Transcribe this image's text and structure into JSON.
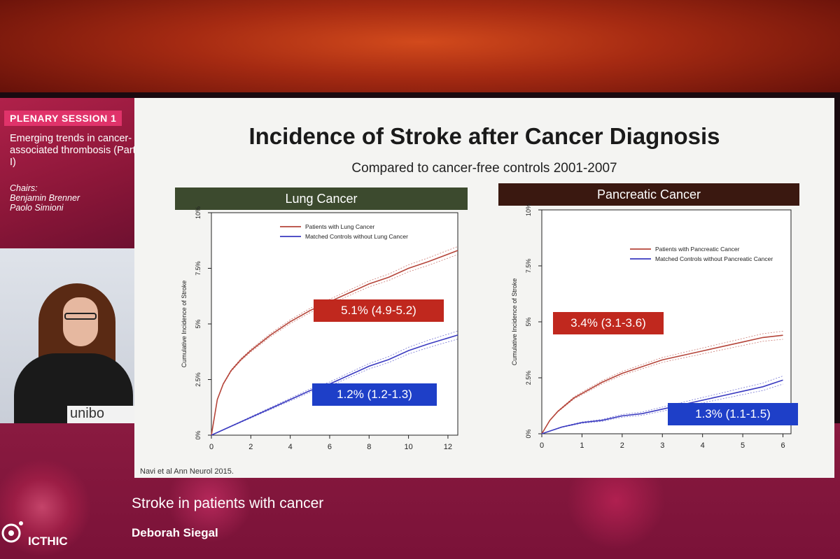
{
  "sidebar": {
    "session_tag": "PLENARY SESSION 1",
    "session_title": "Emerging trends in cancer-associated thrombosis (Part I)",
    "chairs_label": "Chairs:",
    "chair_1": "Benjamin Brenner",
    "chair_2": "Paolo Simioni",
    "podium_text": "unibo"
  },
  "footer": {
    "talk_title": "Stroke in patients with cancer",
    "speaker": "Deborah Siegal",
    "logo_text": "ICTHIC"
  },
  "slide": {
    "title": "Incidence of Stroke after Cancer Diagnosis",
    "subtitle": "Compared to cancer-free controls 2001-2007",
    "citation": "Navi et al Ann Neurol 2015."
  },
  "colors": {
    "cancer_line": "#b5453a",
    "control_line": "#3a3ac0",
    "lung_header": "#3c4a2e",
    "pancreatic_header": "#3a1810",
    "label_red": "#c0281e",
    "label_blue": "#1e3fc8"
  },
  "chart_data": [
    {
      "type": "line",
      "title": "Lung Cancer",
      "ylabel": "Cumulative Incidence of Stroke",
      "xlabel": "",
      "xlim": [
        0,
        12.5
      ],
      "ylim": [
        0,
        10
      ],
      "x_ticks": [
        "0",
        "2",
        "4",
        "6",
        "8",
        "10",
        "12"
      ],
      "x_tick_values": [
        0,
        2,
        4,
        6,
        8,
        10,
        12
      ],
      "y_ticks": [
        "0%",
        "2.5%",
        "5%",
        "7.5%",
        "10%"
      ],
      "y_tick_values": [
        0,
        2.5,
        5,
        7.5,
        10
      ],
      "legend_position": "top-center",
      "series": [
        {
          "name": "Patients with Lung Cancer",
          "x": [
            0,
            0.3,
            0.6,
            1,
            1.5,
            2,
            3,
            4,
            5,
            6,
            7,
            8,
            9,
            10,
            11,
            12.5
          ],
          "values": [
            0,
            1.6,
            2.3,
            2.9,
            3.4,
            3.8,
            4.5,
            5.1,
            5.6,
            6.0,
            6.4,
            6.8,
            7.1,
            7.5,
            7.8,
            8.3
          ]
        },
        {
          "name": "Matched Controls without Lung Cancer",
          "x": [
            0,
            1,
            2,
            3,
            4,
            5,
            6,
            7,
            8,
            9,
            10,
            11,
            12.5
          ],
          "values": [
            0,
            0.4,
            0.8,
            1.2,
            1.6,
            2.0,
            2.3,
            2.7,
            3.1,
            3.4,
            3.8,
            4.1,
            4.5
          ]
        }
      ],
      "annotations": [
        {
          "text": "5.1% (4.9-5.2)",
          "color": "red"
        },
        {
          "text": "1.2% (1.2-1.3)",
          "color": "blue"
        }
      ]
    },
    {
      "type": "line",
      "title": "Pancreatic Cancer",
      "ylabel": "Cumulative Incidence of Stroke",
      "xlabel": "",
      "xlim": [
        0,
        6.2
      ],
      "ylim": [
        0,
        10
      ],
      "x_ticks": [
        "0",
        "1",
        "2",
        "3",
        "4",
        "5",
        "6"
      ],
      "x_tick_values": [
        0,
        1,
        2,
        3,
        4,
        5,
        6
      ],
      "y_ticks": [
        "0%",
        "2.5%",
        "5%",
        "7.5%",
        "10%"
      ],
      "y_tick_values": [
        0,
        2.5,
        5,
        7.5,
        10
      ],
      "legend_position": "top-right",
      "series": [
        {
          "name": "Patients with Pancreatic Cancer",
          "x": [
            0,
            0.2,
            0.4,
            0.6,
            0.8,
            1,
            1.5,
            2,
            2.5,
            3,
            3.5,
            4,
            4.5,
            5,
            5.5,
            6
          ],
          "values": [
            0,
            0.6,
            1.0,
            1.3,
            1.6,
            1.8,
            2.3,
            2.7,
            3.0,
            3.3,
            3.5,
            3.7,
            3.9,
            4.1,
            4.3,
            4.4
          ]
        },
        {
          "name": "Matched Controls without Pancreatic Cancer",
          "x": [
            0,
            0.5,
            1,
            1.5,
            2,
            2.5,
            3,
            3.5,
            4,
            4.5,
            5,
            5.5,
            6
          ],
          "values": [
            0,
            0.3,
            0.5,
            0.6,
            0.8,
            0.9,
            1.1,
            1.3,
            1.5,
            1.7,
            1.9,
            2.1,
            2.4
          ]
        }
      ],
      "annotations": [
        {
          "text": "3.4% (3.1-3.6)",
          "color": "red"
        },
        {
          "text": "1.3% (1.1-1.5)",
          "color": "blue"
        }
      ]
    }
  ]
}
